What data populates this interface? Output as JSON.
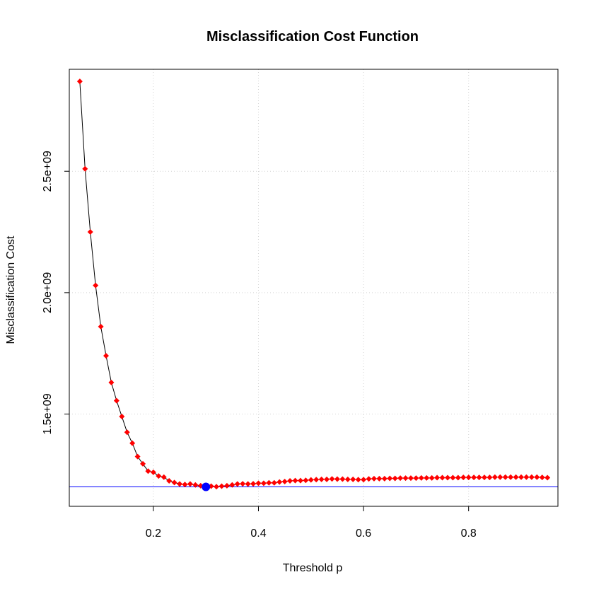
{
  "chart_data": {
    "type": "line",
    "title": "Misclassification Cost Function",
    "xlabel": "Threshold p",
    "ylabel": "Misclassification Cost",
    "xlim": [
      0.04,
      0.97
    ],
    "ylim": [
      1120000000,
      2920000000
    ],
    "x_ticks": [
      0.2,
      0.4,
      0.6,
      0.8
    ],
    "x_tick_labels": [
      "0.2",
      "0.4",
      "0.6",
      "0.8"
    ],
    "y_ticks": [
      1500000000,
      2000000000,
      2500000000
    ],
    "y_tick_labels": [
      "1.5e+09",
      "2.0e+09",
      "2.5e+09"
    ],
    "grid": true,
    "series": [
      {
        "color": "#ff0000",
        "line_color": "#000000",
        "marker": "diamond",
        "x": [
          0.06,
          0.07,
          0.08,
          0.09,
          0.1,
          0.11,
          0.12,
          0.13,
          0.14,
          0.15,
          0.16,
          0.17,
          0.18,
          0.19,
          0.2,
          0.21,
          0.22,
          0.23,
          0.24,
          0.25,
          0.26,
          0.27,
          0.28,
          0.29,
          0.3,
          0.31,
          0.32,
          0.33,
          0.34,
          0.35,
          0.36,
          0.37,
          0.38,
          0.39,
          0.4,
          0.41,
          0.42,
          0.43,
          0.44,
          0.45,
          0.46,
          0.47,
          0.48,
          0.49,
          0.5,
          0.51,
          0.52,
          0.53,
          0.54,
          0.55,
          0.56,
          0.57,
          0.58,
          0.59,
          0.6,
          0.61,
          0.62,
          0.63,
          0.64,
          0.65,
          0.66,
          0.67,
          0.68,
          0.69,
          0.7,
          0.71,
          0.72,
          0.73,
          0.74,
          0.75,
          0.76,
          0.77,
          0.78,
          0.79,
          0.8,
          0.81,
          0.82,
          0.83,
          0.84,
          0.85,
          0.86,
          0.87,
          0.88,
          0.89,
          0.9,
          0.91,
          0.92,
          0.93,
          0.94,
          0.95
        ],
        "y": [
          2870000000,
          2510000000,
          2250000000,
          2030000000,
          1860000000,
          1740000000,
          1630000000,
          1555000000,
          1490000000,
          1425000000,
          1380000000,
          1325000000,
          1295000000,
          1265000000,
          1260000000,
          1245000000,
          1240000000,
          1225000000,
          1218000000,
          1212000000,
          1210000000,
          1212000000,
          1208000000,
          1205000000,
          1200000000,
          1203000000,
          1201000000,
          1203000000,
          1205000000,
          1208000000,
          1212000000,
          1213000000,
          1212000000,
          1213000000,
          1215000000,
          1215000000,
          1217000000,
          1217000000,
          1220000000,
          1222000000,
          1225000000,
          1226000000,
          1226000000,
          1227000000,
          1229000000,
          1230000000,
          1231000000,
          1231000000,
          1233000000,
          1232000000,
          1232000000,
          1231000000,
          1231000000,
          1230000000,
          1230000000,
          1233000000,
          1234000000,
          1234000000,
          1234000000,
          1235000000,
          1235000000,
          1236000000,
          1236000000,
          1236000000,
          1236000000,
          1237000000,
          1237000000,
          1237000000,
          1238000000,
          1238000000,
          1238000000,
          1238000000,
          1238000000,
          1239000000,
          1239000000,
          1239000000,
          1239000000,
          1239000000,
          1239000000,
          1240000000,
          1240000000,
          1240000000,
          1240000000,
          1240000000,
          1240000000,
          1240000000,
          1240000000,
          1240000000,
          1239000000,
          1238000000
        ]
      }
    ],
    "optimum": {
      "x": 0.3,
      "y": 1200000000,
      "color": "#0000ff"
    },
    "hline": {
      "y": 1200000000,
      "color": "#0000ff"
    }
  }
}
